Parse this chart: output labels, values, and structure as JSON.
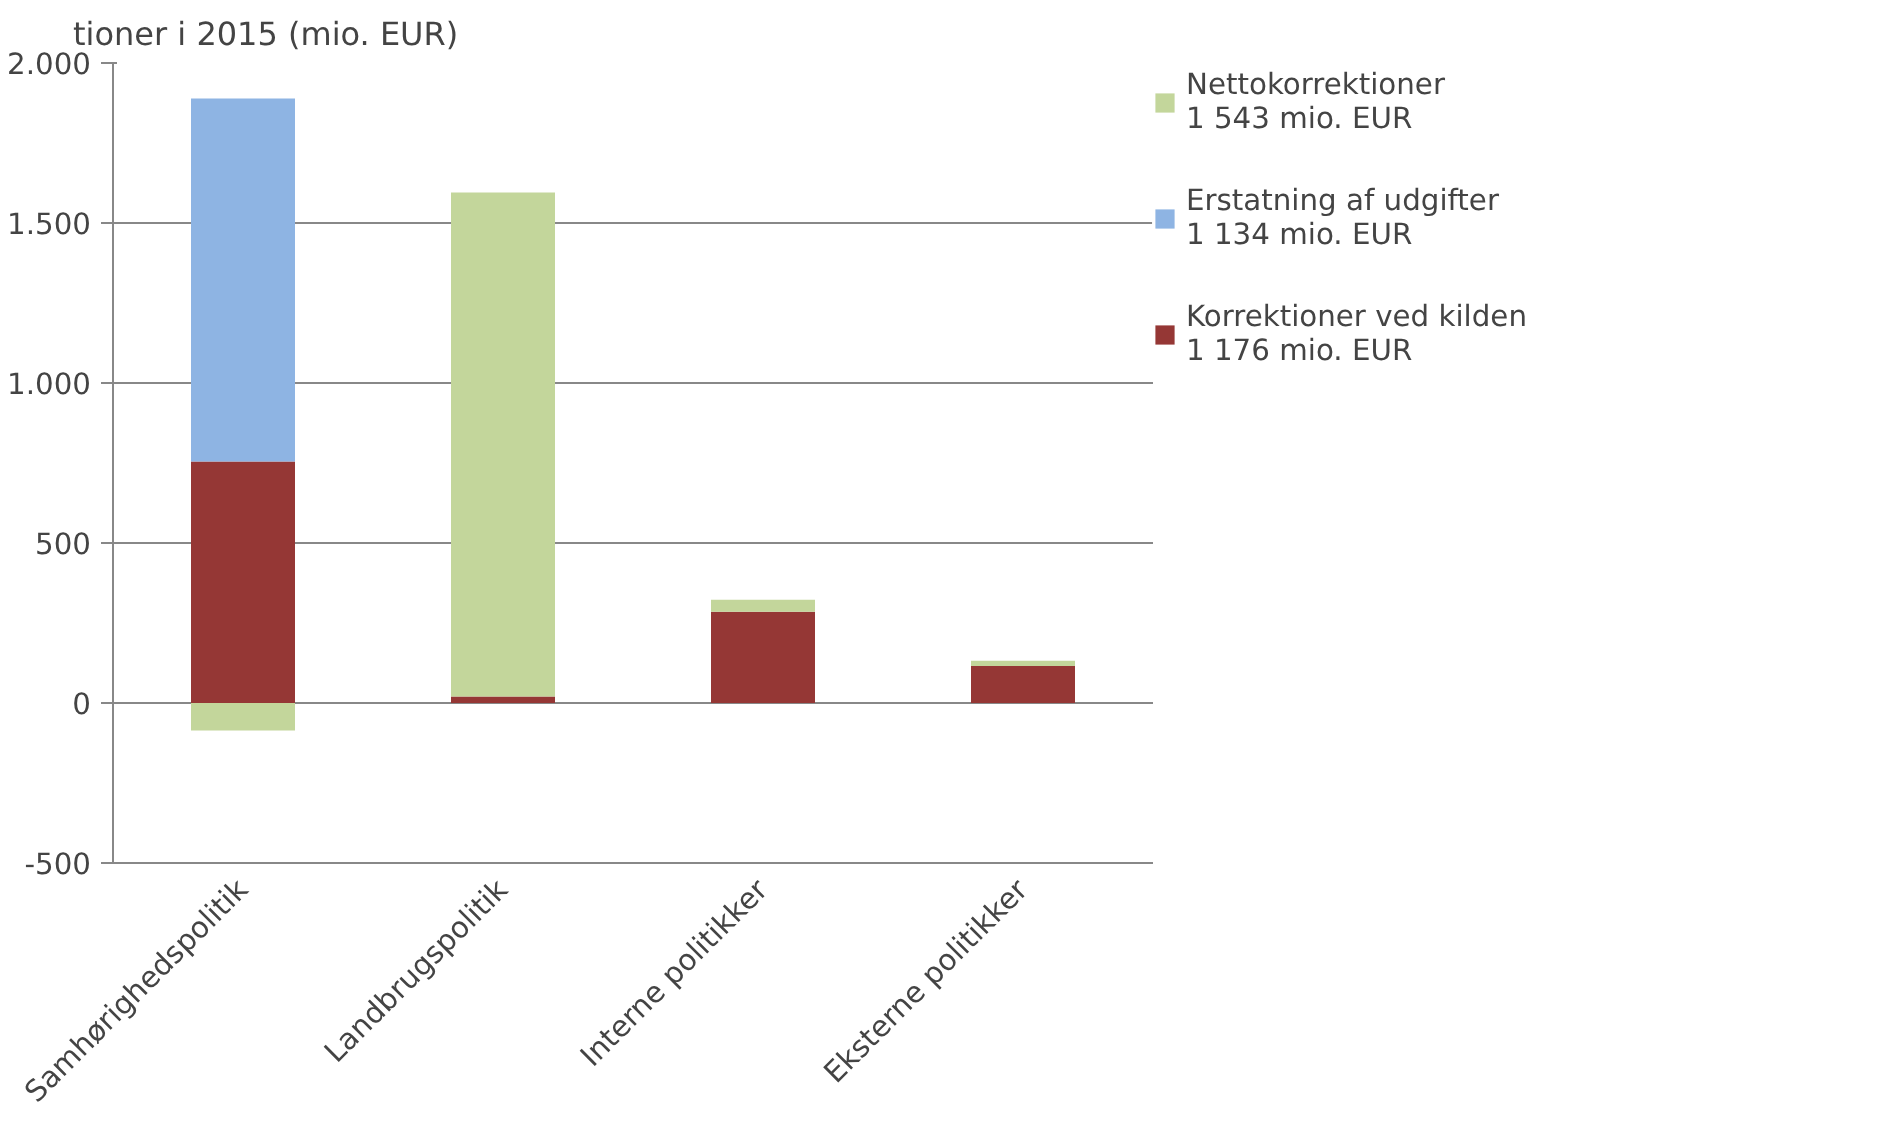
{
  "chart_data": {
    "type": "bar",
    "title": "tioner i 2015 (mio. EUR)",
    "stacked": true,
    "categories": [
      "Samhørighedspolitik",
      "Landbrugspolitik",
      "Interne politikker",
      "Eksterne politikker"
    ],
    "series": [
      {
        "name": "Korrektioner ved kilden\n1 176 mio. EUR",
        "color": "#953735",
        "values": [
          755,
          20,
          285,
          116
        ]
      },
      {
        "name": "Erstatning af udgifter\n1 134 mio. EUR",
        "color": "#8eb4e3",
        "values": [
          1134,
          0,
          0,
          0
        ]
      },
      {
        "name": "Nettokorrektioner\n1 543 mio. EUR",
        "color": "#c3d69b",
        "values": [
          -86,
          1575,
          38,
          16
        ]
      }
    ],
    "ylim": [
      -500,
      2000
    ],
    "yticks": [
      {
        "value": -500,
        "label": "-500"
      },
      0,
      500,
      {
        "value": 1000,
        "label": "1.000"
      },
      {
        "value": 1500,
        "label": "1.500"
      },
      {
        "value": 2000,
        "label": "2.000"
      }
    ],
    "grid": "y",
    "legend": "right"
  }
}
